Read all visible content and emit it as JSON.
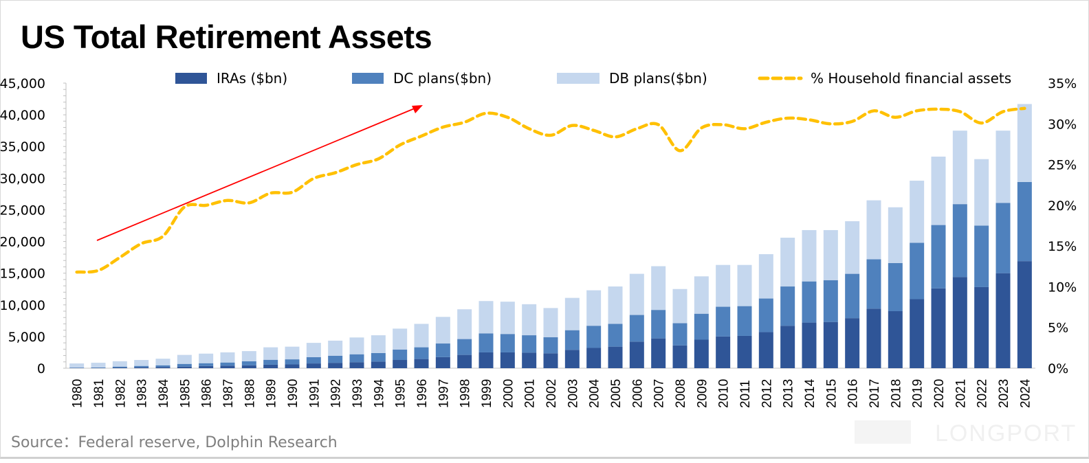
{
  "chart_data": {
    "type": "bar",
    "stacked": true,
    "title": "US Total Retirement Assets",
    "source": "Source：Federal reserve, Dolphin Research",
    "watermark": "LONGPORT",
    "categories": [
      "1980",
      "1981",
      "1982",
      "1983",
      "1984",
      "1985",
      "1986",
      "1987",
      "1988",
      "1989",
      "1990",
      "1991",
      "1992",
      "1993",
      "1994",
      "1995",
      "1996",
      "1997",
      "1998",
      "1999",
      "2000",
      "2001",
      "2002",
      "2003",
      "2004",
      "2005",
      "2006",
      "2007",
      "2008",
      "2009",
      "2010",
      "2011",
      "2012",
      "2013",
      "2014",
      "2015",
      "2016",
      "2017",
      "2018",
      "2019",
      "2020",
      "2021",
      "2022",
      "2023",
      "2024"
    ],
    "series": [
      {
        "name": "IRAs ($bn)",
        "color": "#2f5597",
        "axis": "left",
        "values": [
          30,
          40,
          100,
          150,
          200,
          250,
          350,
          400,
          450,
          550,
          600,
          750,
          850,
          950,
          1050,
          1300,
          1450,
          1750,
          2100,
          2500,
          2500,
          2450,
          2350,
          2900,
          3200,
          3400,
          4200,
          4700,
          3600,
          4500,
          5000,
          5100,
          5700,
          6700,
          7200,
          7300,
          7900,
          9400,
          9000,
          10900,
          12600,
          14400,
          12800,
          15000,
          16900
        ]
      },
      {
        "name": "DC plans($bn)",
        "color": "#4f81bd",
        "axis": "left",
        "values": [
          70,
          80,
          150,
          210,
          260,
          430,
          440,
          500,
          650,
          780,
          800,
          1000,
          1120,
          1250,
          1350,
          1650,
          1850,
          2150,
          2500,
          3000,
          2900,
          2750,
          2550,
          3100,
          3500,
          3600,
          4200,
          4500,
          3500,
          4100,
          4700,
          4700,
          5300,
          6200,
          6500,
          6600,
          7000,
          7800,
          7600,
          8900,
          10000,
          11500,
          9700,
          11100,
          12500
        ]
      },
      {
        "name": "DB plans($bn)",
        "color": "#c5d7ee",
        "axis": "left",
        "values": [
          650,
          740,
          850,
          940,
          1040,
          1420,
          1510,
          1600,
          1600,
          1970,
          2000,
          2250,
          2380,
          2650,
          2800,
          3300,
          3700,
          4200,
          4700,
          5100,
          5100,
          4900,
          4600,
          5100,
          5600,
          5900,
          6500,
          6900,
          5400,
          5900,
          6600,
          6500,
          7000,
          7700,
          8100,
          7900,
          8300,
          9300,
          8800,
          9800,
          10800,
          11600,
          10500,
          11400,
          12300
        ]
      },
      {
        "name": "% Household financial assets",
        "color": "#ffc000",
        "type": "line",
        "dashed": true,
        "axis": "right",
        "values": [
          11.8,
          12.0,
          13.6,
          15.3,
          16.2,
          19.8,
          20.0,
          20.6,
          20.3,
          21.5,
          21.6,
          23.3,
          24.0,
          25.0,
          25.7,
          27.4,
          28.5,
          29.6,
          30.2,
          31.3,
          30.8,
          29.4,
          28.6,
          29.8,
          29.2,
          28.4,
          29.4,
          29.9,
          26.7,
          29.5,
          29.9,
          29.4,
          30.2,
          30.7,
          30.5,
          30.0,
          30.3,
          31.6,
          30.8,
          31.6,
          31.8,
          31.5,
          30.1,
          31.5,
          31.9
        ]
      }
    ],
    "y_left": {
      "min": 0,
      "max": 45000,
      "ticks": [
        "0",
        "5,000",
        "10,000",
        "15,000",
        "20,000",
        "25,000",
        "30,000",
        "35,000",
        "40,000",
        "45,000"
      ]
    },
    "y_right": {
      "min": 0,
      "max": 35,
      "ticks": [
        "0%",
        "5%",
        "10%",
        "15%",
        "20%",
        "25%",
        "30%",
        "35%"
      ]
    },
    "legend_position": "top",
    "annotation": {
      "type": "arrow",
      "color": "#ff0000",
      "from_year": "1981",
      "to_year": "1996",
      "meaning": "upward trend"
    },
    "grid": false
  }
}
